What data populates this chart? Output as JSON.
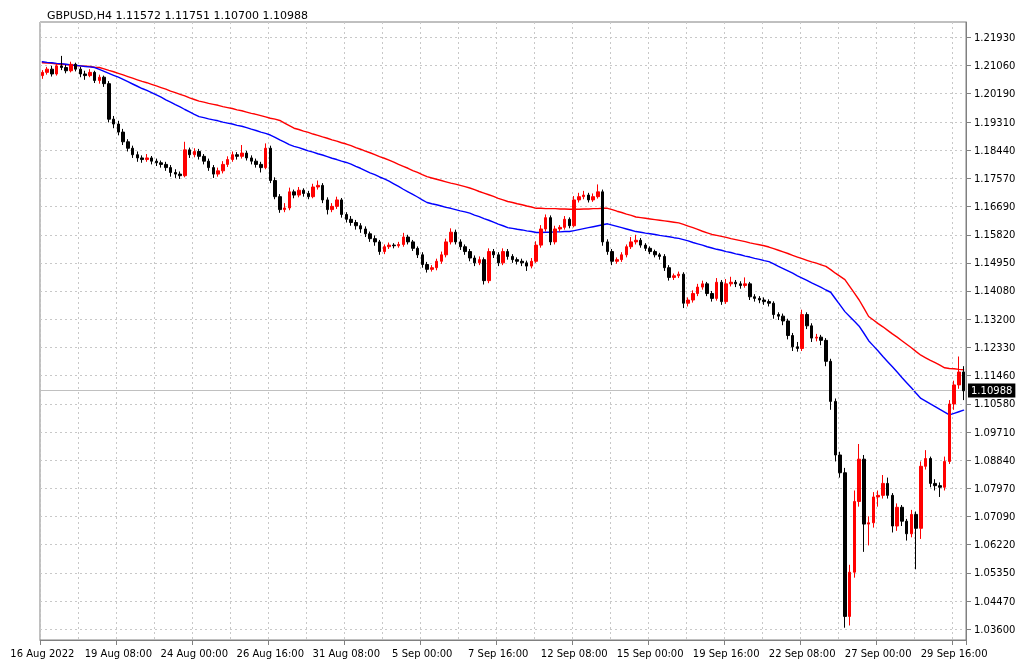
{
  "chart_data": {
    "type": "candlestick",
    "title": "GBPUSD,H4 1.11572 1.11751 1.10700 1.10988",
    "categories": [
      "16 Aug 2022",
      null,
      null,
      null,
      null,
      null,
      null,
      null,
      null,
      null,
      null,
      null,
      null,
      null,
      null,
      null,
      "19 Aug 08:00",
      null,
      null,
      null,
      null,
      null,
      null,
      null,
      null,
      null,
      null,
      null,
      null,
      null,
      null,
      null,
      "24 Aug 00:00",
      null,
      null,
      null,
      null,
      null,
      null,
      null,
      null,
      null,
      null,
      null,
      null,
      null,
      null,
      null,
      "26 Aug 16:00",
      null,
      null,
      null,
      null,
      null,
      null,
      null,
      null,
      null,
      null,
      null,
      null,
      null,
      null,
      null,
      "31 Aug 08:00",
      null,
      null,
      null,
      null,
      null,
      null,
      null,
      null,
      null,
      null,
      null,
      null,
      null,
      null,
      null,
      "5 Sep 00:00",
      null,
      null,
      null,
      null,
      null,
      null,
      null,
      null,
      null,
      null,
      null,
      null,
      null,
      null,
      null,
      "7 Sep 16:00",
      null,
      null,
      null,
      null,
      null,
      null,
      null,
      null,
      null,
      null,
      null,
      null,
      null,
      null,
      null,
      "12 Sep 08:00",
      null,
      null,
      null,
      null,
      null,
      null,
      null,
      null,
      null,
      null,
      null,
      null,
      null,
      null,
      null,
      "15 Sep 00:00",
      null,
      null,
      null,
      null,
      null,
      null,
      null,
      null,
      null,
      null,
      null,
      null,
      null,
      null,
      null,
      "19 Sep 16:00",
      null,
      null,
      null,
      null,
      null,
      null,
      null,
      null,
      null,
      null,
      null,
      null,
      null,
      null,
      null,
      "22 Sep 08:00",
      null,
      null,
      null,
      null,
      null,
      null,
      null,
      null,
      null,
      null,
      null,
      null,
      null,
      null,
      null,
      "27 Sep 00:00",
      null,
      null,
      null,
      null,
      null,
      null,
      null,
      null,
      null,
      null,
      null,
      null,
      null,
      null,
      null,
      "29 Sep 16:00",
      null,
      null
    ],
    "ohlc": [
      [
        1.2075,
        1.2092,
        1.2065,
        1.2085
      ],
      [
        1.2085,
        1.2102,
        1.2078,
        1.2095
      ],
      [
        1.2095,
        1.2105,
        1.2072,
        1.208
      ],
      [
        1.208,
        1.2112,
        1.2075,
        1.2105
      ],
      [
        1.2105,
        1.2136,
        1.2092,
        1.21
      ],
      [
        1.21,
        1.2108,
        1.2082,
        1.209
      ],
      [
        1.209,
        1.2118,
        1.2085,
        1.211
      ],
      [
        1.211,
        1.2115,
        1.2088,
        1.2095
      ],
      [
        1.2095,
        1.2102,
        1.207,
        1.208
      ],
      [
        1.208,
        1.209,
        1.2062,
        1.2075
      ],
      [
        1.2075,
        1.2095,
        1.207,
        1.2085
      ],
      [
        1.2085,
        1.209,
        1.2052,
        1.206
      ],
      [
        1.206,
        1.2078,
        1.205,
        1.207
      ],
      [
        1.207,
        1.2075,
        1.204,
        1.205
      ],
      [
        1.205,
        1.2058,
        1.193,
        1.194
      ],
      [
        1.194,
        1.195,
        1.1912,
        1.1925
      ],
      [
        1.1925,
        1.1935,
        1.189,
        1.19
      ],
      [
        1.19,
        1.191,
        1.186,
        1.187
      ],
      [
        1.187,
        1.1878,
        1.184,
        1.185
      ],
      [
        1.185,
        1.1858,
        1.182,
        1.183
      ],
      [
        1.183,
        1.184,
        1.1808,
        1.182
      ],
      [
        1.182,
        1.1828,
        1.1805,
        1.1815
      ],
      [
        1.1815,
        1.1832,
        1.1808,
        1.182
      ],
      [
        1.182,
        1.1826,
        1.18,
        1.181
      ],
      [
        1.181,
        1.1818,
        1.1795,
        1.1805
      ],
      [
        1.1805,
        1.1812,
        1.179,
        1.18
      ],
      [
        1.18,
        1.1808,
        1.178,
        1.179
      ],
      [
        1.179,
        1.1798,
        1.1762,
        1.1775
      ],
      [
        1.1775,
        1.1785,
        1.1758,
        1.177
      ],
      [
        1.177,
        1.1778,
        1.1755,
        1.1765
      ],
      [
        1.1765,
        1.187,
        1.176,
        1.1845
      ],
      [
        1.1845,
        1.1852,
        1.182,
        1.183
      ],
      [
        1.183,
        1.185,
        1.1822,
        1.184
      ],
      [
        1.184,
        1.1848,
        1.1815,
        1.1825
      ],
      [
        1.1825,
        1.1832,
        1.18,
        1.181
      ],
      [
        1.181,
        1.1818,
        1.178,
        1.179
      ],
      [
        1.179,
        1.1798,
        1.1758,
        1.177
      ],
      [
        1.177,
        1.179,
        1.1762,
        1.178
      ],
      [
        1.178,
        1.181,
        1.1772,
        1.18
      ],
      [
        1.18,
        1.1825,
        1.1792,
        1.1815
      ],
      [
        1.1815,
        1.184,
        1.1808,
        1.183
      ],
      [
        1.183,
        1.1838,
        1.1815,
        1.1825
      ],
      [
        1.1825,
        1.186,
        1.1818,
        1.1835
      ],
      [
        1.1835,
        1.1842,
        1.1812,
        1.182
      ],
      [
        1.182,
        1.1828,
        1.18,
        1.181
      ],
      [
        1.181,
        1.1818,
        1.179,
        1.18
      ],
      [
        1.18,
        1.1808,
        1.1775,
        1.179
      ],
      [
        1.179,
        1.1865,
        1.1785,
        1.185
      ],
      [
        1.185,
        1.1858,
        1.1742,
        1.175
      ],
      [
        1.175,
        1.176,
        1.1692,
        1.17
      ],
      [
        1.17,
        1.1708,
        1.165,
        1.166
      ],
      [
        1.166,
        1.168,
        1.1652,
        1.1665
      ],
      [
        1.1665,
        1.1728,
        1.1658,
        1.1715
      ],
      [
        1.1715,
        1.1722,
        1.1695,
        1.1705
      ],
      [
        1.1705,
        1.173,
        1.1698,
        1.172
      ],
      [
        1.172,
        1.1726,
        1.17,
        1.171
      ],
      [
        1.171,
        1.1718,
        1.1692,
        1.17
      ],
      [
        1.17,
        1.174,
        1.1695,
        1.173
      ],
      [
        1.173,
        1.175,
        1.1722,
        1.1735
      ],
      [
        1.1735,
        1.1742,
        1.168,
        1.169
      ],
      [
        1.169,
        1.1698,
        1.1645,
        1.166
      ],
      [
        1.166,
        1.168,
        1.1652,
        1.167
      ],
      [
        1.167,
        1.17,
        1.1662,
        1.169
      ],
      [
        1.169,
        1.1696,
        1.1635,
        1.1645
      ],
      [
        1.1645,
        1.1652,
        1.162,
        1.163
      ],
      [
        1.163,
        1.164,
        1.161,
        1.162
      ],
      [
        1.162,
        1.1628,
        1.1598,
        1.161
      ],
      [
        1.161,
        1.1618,
        1.1588,
        1.16
      ],
      [
        1.16,
        1.1608,
        1.1575,
        1.1585
      ],
      [
        1.1585,
        1.1592,
        1.156,
        1.157
      ],
      [
        1.157,
        1.158,
        1.1548,
        1.156
      ],
      [
        1.156,
        1.1566,
        1.152,
        1.153
      ],
      [
        1.153,
        1.1552,
        1.1522,
        1.1545
      ],
      [
        1.1545,
        1.1558,
        1.1538,
        1.155
      ],
      [
        1.155,
        1.1556,
        1.154,
        1.1548
      ],
      [
        1.1548,
        1.156,
        1.1542,
        1.1552
      ],
      [
        1.1552,
        1.1588,
        1.1545,
        1.1575
      ],
      [
        1.1575,
        1.1582,
        1.1552,
        1.156
      ],
      [
        1.156,
        1.1566,
        1.1532,
        1.154
      ],
      [
        1.154,
        1.1546,
        1.151,
        1.152
      ],
      [
        1.152,
        1.1528,
        1.148,
        1.149
      ],
      [
        1.149,
        1.1498,
        1.1465,
        1.1475
      ],
      [
        1.1475,
        1.1488,
        1.1468,
        1.148
      ],
      [
        1.148,
        1.1508,
        1.1472,
        1.15
      ],
      [
        1.15,
        1.153,
        1.1492,
        1.152
      ],
      [
        1.152,
        1.157,
        1.1512,
        1.156
      ],
      [
        1.156,
        1.1602,
        1.1552,
        1.159
      ],
      [
        1.159,
        1.1598,
        1.1552,
        1.156
      ],
      [
        1.156,
        1.1568,
        1.1535,
        1.1545
      ],
      [
        1.1545,
        1.1552,
        1.152,
        1.153
      ],
      [
        1.153,
        1.1538,
        1.15,
        1.151
      ],
      [
        1.151,
        1.1518,
        1.1485,
        1.1495
      ],
      [
        1.1495,
        1.1515,
        1.1488,
        1.1505
      ],
      [
        1.1505,
        1.1512,
        1.1428,
        1.144
      ],
      [
        1.144,
        1.154,
        1.1432,
        1.153
      ],
      [
        1.153,
        1.1538,
        1.151,
        1.152
      ],
      [
        1.152,
        1.1528,
        1.1485,
        1.1495
      ],
      [
        1.1495,
        1.154,
        1.1488,
        1.153
      ],
      [
        1.153,
        1.1538,
        1.1505,
        1.1515
      ],
      [
        1.1515,
        1.1522,
        1.1495,
        1.1505
      ],
      [
        1.1505,
        1.1512,
        1.149,
        1.15
      ],
      [
        1.15,
        1.1508,
        1.1485,
        1.1495
      ],
      [
        1.1495,
        1.1502,
        1.147,
        1.1485
      ],
      [
        1.1485,
        1.151,
        1.1478,
        1.15
      ],
      [
        1.15,
        1.1562,
        1.1495,
        1.155
      ],
      [
        1.155,
        1.1612,
        1.1542,
        1.16
      ],
      [
        1.16,
        1.1645,
        1.1592,
        1.1635
      ],
      [
        1.1635,
        1.1642,
        1.155,
        1.156
      ],
      [
        1.156,
        1.161,
        1.1552,
        1.16
      ],
      [
        1.16,
        1.1612,
        1.1592,
        1.1605
      ],
      [
        1.1605,
        1.164,
        1.1598,
        1.163
      ],
      [
        1.163,
        1.1636,
        1.1602,
        1.161
      ],
      [
        1.161,
        1.1702,
        1.1605,
        1.169
      ],
      [
        1.169,
        1.1712,
        1.1682,
        1.17
      ],
      [
        1.17,
        1.1718,
        1.1692,
        1.1705
      ],
      [
        1.1705,
        1.1712,
        1.1682,
        1.169
      ],
      [
        1.169,
        1.171,
        1.1684,
        1.17
      ],
      [
        1.17,
        1.1738,
        1.1694,
        1.1715
      ],
      [
        1.1715,
        1.1722,
        1.1548,
        1.156
      ],
      [
        1.156,
        1.1568,
        1.152,
        1.153
      ],
      [
        1.153,
        1.1538,
        1.1488,
        1.15
      ],
      [
        1.15,
        1.1512,
        1.1492,
        1.1505
      ],
      [
        1.1505,
        1.1528,
        1.1498,
        1.152
      ],
      [
        1.152,
        1.1552,
        1.1512,
        1.1545
      ],
      [
        1.1545,
        1.1575,
        1.1538,
        1.156
      ],
      [
        1.156,
        1.1582,
        1.1552,
        1.1565
      ],
      [
        1.1565,
        1.1572,
        1.1542,
        1.155
      ],
      [
        1.155,
        1.1556,
        1.1532,
        1.154
      ],
      [
        1.154,
        1.1546,
        1.1522,
        1.153
      ],
      [
        1.153,
        1.1536,
        1.1512,
        1.152
      ],
      [
        1.152,
        1.1526,
        1.1505,
        1.1515
      ],
      [
        1.1515,
        1.1522,
        1.147,
        1.148
      ],
      [
        1.148,
        1.1488,
        1.144,
        1.145
      ],
      [
        1.145,
        1.1462,
        1.1442,
        1.1455
      ],
      [
        1.1455,
        1.1468,
        1.1448,
        1.146
      ],
      [
        1.146,
        1.1466,
        1.1355,
        1.137
      ],
      [
        1.137,
        1.1388,
        1.136,
        1.138
      ],
      [
        1.138,
        1.141,
        1.1372,
        1.14
      ],
      [
        1.14,
        1.143,
        1.1392,
        1.142
      ],
      [
        1.142,
        1.144,
        1.1412,
        1.143
      ],
      [
        1.143,
        1.1436,
        1.1392,
        1.14
      ],
      [
        1.14,
        1.1408,
        1.1375,
        1.1385
      ],
      [
        1.1385,
        1.1448,
        1.1378,
        1.1435
      ],
      [
        1.1435,
        1.1442,
        1.1365,
        1.1375
      ],
      [
        1.1375,
        1.1445,
        1.1368,
        1.143
      ],
      [
        1.143,
        1.1452,
        1.1422,
        1.1435
      ],
      [
        1.1435,
        1.1442,
        1.142,
        1.143
      ],
      [
        1.143,
        1.1438,
        1.1415,
        1.1425
      ],
      [
        1.1425,
        1.145,
        1.1418,
        1.143
      ],
      [
        1.143,
        1.1436,
        1.138,
        1.139
      ],
      [
        1.139,
        1.1398,
        1.1375,
        1.1385
      ],
      [
        1.1385,
        1.1392,
        1.137,
        1.138
      ],
      [
        1.138,
        1.1388,
        1.1365,
        1.1375
      ],
      [
        1.1375,
        1.1382,
        1.136,
        1.137
      ],
      [
        1.137,
        1.1376,
        1.1322,
        1.1335
      ],
      [
        1.1335,
        1.1342,
        1.1318,
        1.133
      ],
      [
        1.133,
        1.1338,
        1.1302,
        1.1315
      ],
      [
        1.1315,
        1.1322,
        1.1258,
        1.127
      ],
      [
        1.127,
        1.1278,
        1.1222,
        1.1235
      ],
      [
        1.1235,
        1.125,
        1.122,
        1.123
      ],
      [
        1.123,
        1.135,
        1.1222,
        1.1335
      ],
      [
        1.1335,
        1.1342,
        1.129,
        1.13
      ],
      [
        1.13,
        1.1308,
        1.125,
        1.1262
      ],
      [
        1.1262,
        1.1275,
        1.1252,
        1.1265
      ],
      [
        1.1265,
        1.1272,
        1.124,
        1.1255
      ],
      [
        1.1255,
        1.1262,
        1.1175,
        1.119
      ],
      [
        1.119,
        1.1198,
        1.104,
        1.1066
      ],
      [
        1.1066,
        1.1075,
        1.088,
        1.09
      ],
      [
        1.09,
        1.091,
        1.083,
        1.0845
      ],
      [
        1.0845,
        1.086,
        1.0365,
        1.04
      ],
      [
        1.04,
        1.056,
        1.0372,
        1.0537
      ],
      [
        1.0537,
        1.079,
        1.052,
        1.0756
      ],
      [
        1.0756,
        1.0934,
        1.074,
        1.0887
      ],
      [
        1.0887,
        1.09,
        1.06,
        1.0686
      ],
      [
        1.0686,
        1.071,
        1.062,
        1.069
      ],
      [
        1.069,
        1.0785,
        1.0675,
        1.077
      ],
      [
        1.077,
        1.079,
        1.074,
        1.0775
      ],
      [
        1.0775,
        1.0838,
        1.0765,
        1.0812
      ],
      [
        1.0812,
        1.083,
        1.0765,
        1.0775
      ],
      [
        1.0775,
        1.0782,
        1.066,
        1.068
      ],
      [
        1.068,
        1.075,
        1.0665,
        1.0738
      ],
      [
        1.0738,
        1.0745,
        1.068,
        1.0695
      ],
      [
        1.0695,
        1.0702,
        1.0635,
        1.0656
      ],
      [
        1.0656,
        1.073,
        1.0645,
        1.0716
      ],
      [
        1.0716,
        1.0725,
        1.0546,
        1.0673
      ],
      [
        1.0673,
        1.088,
        1.064,
        1.0865
      ],
      [
        1.0865,
        1.0915,
        1.0855,
        1.0889
      ],
      [
        1.0889,
        1.0895,
        1.08,
        1.0812
      ],
      [
        1.0812,
        1.0825,
        1.079,
        1.0805
      ],
      [
        1.0805,
        1.0815,
        1.077,
        1.08
      ],
      [
        1.08,
        1.0895,
        1.079,
        1.088
      ],
      [
        1.088,
        1.107,
        1.0872,
        1.1058
      ],
      [
        1.1058,
        1.113,
        1.104,
        1.1117
      ],
      [
        1.1117,
        1.1205,
        1.1105,
        1.1157
      ],
      [
        1.11572,
        1.11751,
        1.107,
        1.10988
      ]
    ],
    "colors": [
      "#ff0000",
      "#ff0000",
      "#000000",
      "#ff0000",
      "#000000",
      "#000000",
      "#ff0000",
      "#000000",
      "#000000",
      "#000000",
      "#ff0000",
      "#000000",
      "#ff0000",
      "#000000",
      "#000000",
      "#000000",
      "#000000",
      "#000000",
      "#000000",
      "#000000",
      "#000000",
      "#000000",
      "#ff0000",
      "#000000",
      "#000000",
      "#000000",
      "#000000",
      "#000000",
      "#000000",
      "#000000",
      "#ff0000",
      "#000000",
      "#ff0000",
      "#000000",
      "#000000",
      "#000000",
      "#000000",
      "#ff0000",
      "#ff0000",
      "#ff0000",
      "#ff0000",
      "#000000",
      "#ff0000",
      "#000000",
      "#000000",
      "#000000",
      "#000000",
      "#ff0000",
      "#000000",
      "#000000",
      "#000000",
      "#ff0000",
      "#ff0000",
      "#000000",
      "#ff0000",
      "#000000",
      "#000000",
      "#ff0000",
      "#ff0000",
      "#000000",
      "#000000",
      "#ff0000",
      "#ff0000",
      "#000000",
      "#000000",
      "#000000",
      "#000000",
      "#000000",
      "#000000",
      "#000000",
      "#000000",
      "#000000",
      "#ff0000",
      "#ff0000",
      "#000000",
      "#ff0000",
      "#ff0000",
      "#000000",
      "#000000",
      "#000000",
      "#000000",
      "#000000",
      "#ff0000",
      "#ff0000",
      "#ff0000",
      "#ff0000",
      "#ff0000",
      "#000000",
      "#000000",
      "#000000",
      "#000000",
      "#000000",
      "#ff0000",
      "#000000",
      "#ff0000",
      "#000000",
      "#000000",
      "#ff0000",
      "#000000",
      "#000000",
      "#000000",
      "#000000",
      "#000000",
      "#ff0000",
      "#ff0000",
      "#ff0000",
      "#ff0000",
      "#000000",
      "#ff0000",
      "#ff0000",
      "#ff0000",
      "#000000",
      "#ff0000",
      "#ff0000",
      "#ff0000",
      "#000000",
      "#ff0000",
      "#ff0000",
      "#000000",
      "#000000",
      "#000000",
      "#ff0000",
      "#ff0000",
      "#ff0000",
      "#ff0000",
      "#ff0000",
      "#000000",
      "#000000",
      "#000000",
      "#000000",
      "#000000",
      "#000000",
      "#000000",
      "#ff0000",
      "#ff0000",
      "#000000",
      "#ff0000",
      "#ff0000",
      "#ff0000",
      "#ff0000",
      "#000000",
      "#000000",
      "#ff0000",
      "#000000",
      "#ff0000",
      "#ff0000",
      "#000000",
      "#000000",
      "#ff0000",
      "#000000",
      "#000000",
      "#000000",
      "#000000",
      "#000000",
      "#000000",
      "#000000",
      "#000000",
      "#000000",
      "#000000",
      "#000000",
      "#ff0000",
      "#000000",
      "#000000",
      "#ff0000",
      "#000000",
      "#000000",
      "#000000",
      "#000000",
      "#000000",
      "#000000",
      "#ff0000",
      "#ff0000",
      "#ff0000",
      "#000000",
      "#ff0000",
      "#ff0000",
      "#ff0000",
      "#ff0000",
      "#000000",
      "#000000",
      "#ff0000",
      "#000000",
      "#000000",
      "#ff0000",
      "#000000",
      "#ff0000",
      "#ff0000",
      "#000000",
      "#000000",
      "#000000",
      "#ff0000",
      "#ff0000",
      "#ff0000",
      "#ff0000",
      "#000000"
    ],
    "series": [
      {
        "type": "line",
        "color": "#ff0000",
        "values": [
          1.2115,
          1.2114,
          1.2113,
          1.2111,
          1.211,
          1.2109,
          1.2108,
          1.2106,
          1.2105,
          1.2104,
          1.2103,
          1.2101,
          1.21,
          1.2096,
          1.2091,
          1.2087,
          1.2082,
          1.2077,
          1.2072,
          1.2067,
          1.2062,
          1.2057,
          1.2053,
          1.2048,
          1.2043,
          1.2038,
          1.2033,
          1.2027,
          1.2022,
          1.2017,
          1.2012,
          1.2006,
          1.2001,
          1.1996,
          1.1993,
          1.1989,
          1.1986,
          1.1983,
          1.1979,
          1.1976,
          1.1973,
          1.1969,
          1.1966,
          1.1962,
          1.1958,
          1.1955,
          1.1951,
          1.1947,
          1.1943,
          1.194,
          1.1936,
          1.1928,
          1.192,
          1.1912,
          1.1908,
          1.1903,
          1.1899,
          1.1894,
          1.189,
          1.1885,
          1.1881,
          1.1876,
          1.1872,
          1.1867,
          1.1863,
          1.1858,
          1.1852,
          1.1847,
          1.1841,
          1.1836,
          1.183,
          1.1824,
          1.1819,
          1.1813,
          1.1807,
          1.18,
          1.1794,
          1.1788,
          1.1781,
          1.1775,
          1.1768,
          1.1762,
          1.1758,
          1.1754,
          1.175,
          1.1746,
          1.1742,
          1.1739,
          1.1735,
          1.1731,
          1.1727,
          1.1722,
          1.1716,
          1.1711,
          1.1706,
          1.1701,
          1.1695,
          1.169,
          1.1685,
          1.1682,
          1.1678,
          1.1675,
          1.1671,
          1.1668,
          1.1664,
          1.1664,
          1.1663,
          1.1663,
          1.1663,
          1.1662,
          1.1662,
          1.1661,
          1.1661,
          1.1661,
          1.1662,
          1.1662,
          1.1663,
          1.1663,
          1.1664,
          1.1664,
          1.166,
          1.1655,
          1.1651,
          1.1646,
          1.1642,
          1.1637,
          1.1635,
          1.1633,
          1.1631,
          1.1629,
          1.1627,
          1.1625,
          1.1623,
          1.1621,
          1.1619,
          1.1614,
          1.1609,
          1.1604,
          1.1599,
          1.1593,
          1.1588,
          1.1583,
          1.158,
          1.1577,
          1.1574,
          1.157,
          1.1567,
          1.1564,
          1.1561,
          1.1557,
          1.1554,
          1.1551,
          1.1548,
          1.1544,
          1.1539,
          1.1534,
          1.1529,
          1.1524,
          1.1518,
          1.1513,
          1.1508,
          1.1503,
          1.1498,
          1.1494,
          1.1489,
          1.1484,
          1.1474,
          1.1463,
          1.1453,
          1.1443,
          1.1422,
          1.1401,
          1.138,
          1.1355,
          1.1329,
          1.1318,
          1.1307,
          1.1297,
          1.1286,
          1.1275,
          1.1265,
          1.1254,
          1.1243,
          1.1232,
          1.122,
          1.1209,
          1.1201,
          1.1193,
          1.1186,
          1.1178,
          1.117,
          1.1168,
          1.1167,
          1.1165,
          1.1164
        ]
      },
      {
        "type": "line",
        "color": "#0000ff",
        "values": [
          1.2118,
          1.2116,
          1.2115,
          1.2113,
          1.2112,
          1.211,
          1.2108,
          1.2107,
          1.2105,
          1.2103,
          1.2102,
          1.21,
          1.2094,
          1.2088,
          1.2082,
          1.2076,
          1.207,
          1.2063,
          1.2056,
          1.2049,
          1.2042,
          1.2035,
          1.2029,
          1.2022,
          1.2015,
          1.2008,
          1.2,
          1.1993,
          1.1985,
          1.1978,
          1.197,
          1.1963,
          1.1955,
          1.1948,
          1.1945,
          1.1941,
          1.1938,
          1.1935,
          1.1931,
          1.1928,
          1.1925,
          1.1921,
          1.1918,
          1.1914,
          1.1909,
          1.1905,
          1.19,
          1.1896,
          1.1891,
          1.1884,
          1.1876,
          1.1869,
          1.1861,
          1.1856,
          1.1852,
          1.1847,
          1.1842,
          1.1838,
          1.1833,
          1.1829,
          1.1824,
          1.1819,
          1.1815,
          1.181,
          1.1806,
          1.1801,
          1.1794,
          1.1788,
          1.1781,
          1.1774,
          1.1768,
          1.1761,
          1.1755,
          1.1748,
          1.174,
          1.1732,
          1.1723,
          1.1715,
          1.1707,
          1.1699,
          1.169,
          1.1682,
          1.1678,
          1.1675,
          1.1671,
          1.1667,
          1.1664,
          1.166,
          1.1656,
          1.1653,
          1.1649,
          1.1643,
          1.1638,
          1.1632,
          1.1627,
          1.1621,
          1.1615,
          1.161,
          1.1604,
          1.1602,
          1.1599,
          1.1597,
          1.1594,
          1.1592,
          1.1589,
          1.1589,
          1.159,
          1.159,
          1.1591,
          1.1591,
          1.1592,
          1.1592,
          1.1595,
          1.1598,
          1.1601,
          1.1604,
          1.1607,
          1.161,
          1.1613,
          1.1616,
          1.1612,
          1.1608,
          1.1604,
          1.16,
          1.1596,
          1.1592,
          1.159,
          1.1587,
          1.1585,
          1.1583,
          1.158,
          1.1578,
          1.1576,
          1.1573,
          1.1571,
          1.1567,
          1.1563,
          1.1558,
          1.1554,
          1.155,
          1.1545,
          1.1541,
          1.1537,
          1.1534,
          1.153,
          1.1527,
          1.1523,
          1.152,
          1.1516,
          1.1513,
          1.1509,
          1.1506,
          1.1502,
          1.1499,
          1.1492,
          1.1484,
          1.1477,
          1.147,
          1.1463,
          1.1455,
          1.1448,
          1.1441,
          1.1433,
          1.1426,
          1.1419,
          1.1411,
          1.1404,
          1.1384,
          1.1364,
          1.1344,
          1.1329,
          1.1314,
          1.1299,
          1.1277,
          1.1254,
          1.1238,
          1.1222,
          1.1205,
          1.1189,
          1.1173,
          1.1157,
          1.114,
          1.1124,
          1.1108,
          1.1091,
          1.1075,
          1.1067,
          1.1058,
          1.105,
          1.1041,
          1.1033,
          1.1024,
          1.1029,
          1.1034,
          1.1039
        ]
      }
    ],
    "ylim": [
      1.0327,
      1.2241
    ],
    "yticks": [
      {
        "value": 1.2193,
        "label": "1.21930"
      },
      {
        "value": 1.2106,
        "label": "1.21060"
      },
      {
        "value": 1.2019,
        "label": "1.20190"
      },
      {
        "value": 1.1931,
        "label": "1.19310"
      },
      {
        "value": 1.1844,
        "label": "1.18440"
      },
      {
        "value": 1.1757,
        "label": "1.17570"
      },
      {
        "value": 1.1669,
        "label": "1.16690"
      },
      {
        "value": 1.1582,
        "label": "1.15820"
      },
      {
        "value": 1.1495,
        "label": "1.14950"
      },
      {
        "value": 1.1408,
        "label": "1.14080"
      },
      {
        "value": 1.132,
        "label": "1.13200"
      },
      {
        "value": 1.1233,
        "label": "1.12330"
      },
      {
        "value": 1.1146,
        "label": "1.11460"
      },
      {
        "value": 1.1058,
        "label": "1.10580"
      },
      {
        "value": 1.0971,
        "label": "1.09710"
      },
      {
        "value": 1.0884,
        "label": "1.08840"
      },
      {
        "value": 1.0797,
        "label": "1.07970"
      },
      {
        "value": 1.0709,
        "label": "1.07090"
      },
      {
        "value": 1.0622,
        "label": "1.06220"
      },
      {
        "value": 1.0535,
        "label": "1.05350"
      },
      {
        "value": 1.0447,
        "label": "1.04470"
      },
      {
        "value": 1.036,
        "label": "1.03600"
      }
    ],
    "ref_lines": [
      {
        "axis": "y",
        "value": 1.10988,
        "label": "1.10988",
        "color": "#c0c0c0"
      }
    ],
    "grid": true,
    "marker": "none",
    "line_style": "solid"
  }
}
